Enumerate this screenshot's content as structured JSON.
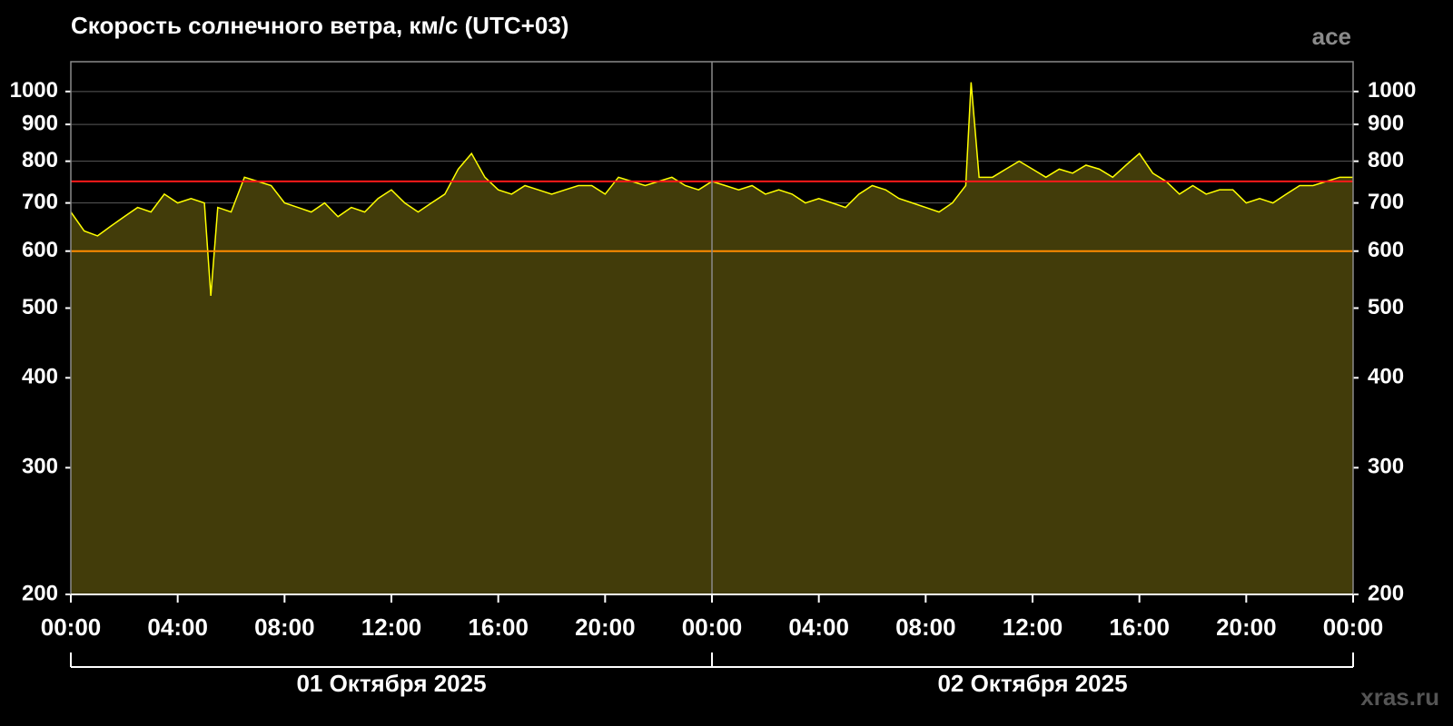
{
  "chart_data": {
    "type": "area",
    "title": "Скорость солнечного ветра, км/с (UTC+03)",
    "source": "ace",
    "watermark": "xras.ru",
    "log_y": true,
    "grid": true,
    "xlim": [
      0,
      48
    ],
    "ylim": [
      200,
      1100
    ],
    "yticks": [
      200,
      300,
      400,
      500,
      600,
      700,
      800,
      900,
      1000
    ],
    "xticks": [
      {
        "value": 0,
        "label": "00:00"
      },
      {
        "value": 4,
        "label": "04:00"
      },
      {
        "value": 8,
        "label": "08:00"
      },
      {
        "value": 12,
        "label": "12:00"
      },
      {
        "value": 16,
        "label": "16:00"
      },
      {
        "value": 20,
        "label": "20:00"
      },
      {
        "value": 24,
        "label": "00:00"
      },
      {
        "value": 28,
        "label": "04:00"
      },
      {
        "value": 32,
        "label": "08:00"
      },
      {
        "value": 36,
        "label": "12:00"
      },
      {
        "value": 40,
        "label": "16:00"
      },
      {
        "value": 44,
        "label": "20:00"
      },
      {
        "value": 48,
        "label": "00:00"
      }
    ],
    "day_divider": 24,
    "date_labels": [
      {
        "text": "01 Октября 2025",
        "from": 0,
        "to": 24
      },
      {
        "text": "02 Октября 2025",
        "from": 24,
        "to": 48
      }
    ],
    "reference_lines": [
      {
        "value": 750,
        "color": "#ff1a1a"
      },
      {
        "value": 600,
        "color": "#ff8c00"
      }
    ],
    "series": [
      {
        "name": "ace",
        "color": "#ffff00",
        "fill": "#423c0a",
        "x": [
          0,
          0.5,
          1,
          1.5,
          2,
          2.5,
          3,
          3.5,
          4,
          4.5,
          5,
          5.24,
          5.5,
          6,
          6.5,
          7,
          7.5,
          8,
          8.5,
          9,
          9.5,
          10,
          10.5,
          11,
          11.5,
          12,
          12.5,
          13,
          13.5,
          14,
          14.5,
          15,
          15.5,
          16,
          16.5,
          17,
          17.5,
          18,
          18.5,
          19,
          19.5,
          20,
          20.5,
          21,
          21.5,
          22,
          22.5,
          23,
          23.5,
          24,
          24.5,
          25,
          25.5,
          26,
          26.5,
          27,
          27.5,
          28,
          28.5,
          29,
          29.5,
          30,
          30.5,
          31,
          31.5,
          32,
          32.5,
          33,
          33.5,
          33.7,
          34,
          34.5,
          35,
          35.5,
          36,
          36.5,
          37,
          37.5,
          38,
          38.5,
          39,
          39.5,
          40,
          40.5,
          41,
          41.5,
          42,
          42.5,
          43,
          43.5,
          44,
          44.5,
          45,
          45.5,
          46,
          46.5,
          47,
          47.5,
          48
        ],
        "values": [
          680,
          640,
          630,
          650,
          670,
          690,
          680,
          720,
          700,
          710,
          700,
          520,
          690,
          680,
          760,
          750,
          740,
          700,
          690,
          680,
          700,
          670,
          690,
          680,
          710,
          730,
          700,
          680,
          700,
          720,
          780,
          820,
          760,
          730,
          720,
          740,
          730,
          720,
          730,
          740,
          740,
          720,
          760,
          750,
          740,
          750,
          760,
          740,
          730,
          750,
          740,
          730,
          740,
          720,
          730,
          720,
          700,
          710,
          700,
          690,
          720,
          740,
          730,
          710,
          700,
          690,
          680,
          700,
          740,
          1030,
          760,
          760,
          780,
          800,
          780,
          760,
          780,
          770,
          790,
          780,
          760,
          790,
          820,
          770,
          750,
          720,
          740,
          720,
          730,
          730,
          700,
          710,
          700,
          720,
          740,
          740,
          750,
          760,
          760
        ]
      }
    ]
  }
}
